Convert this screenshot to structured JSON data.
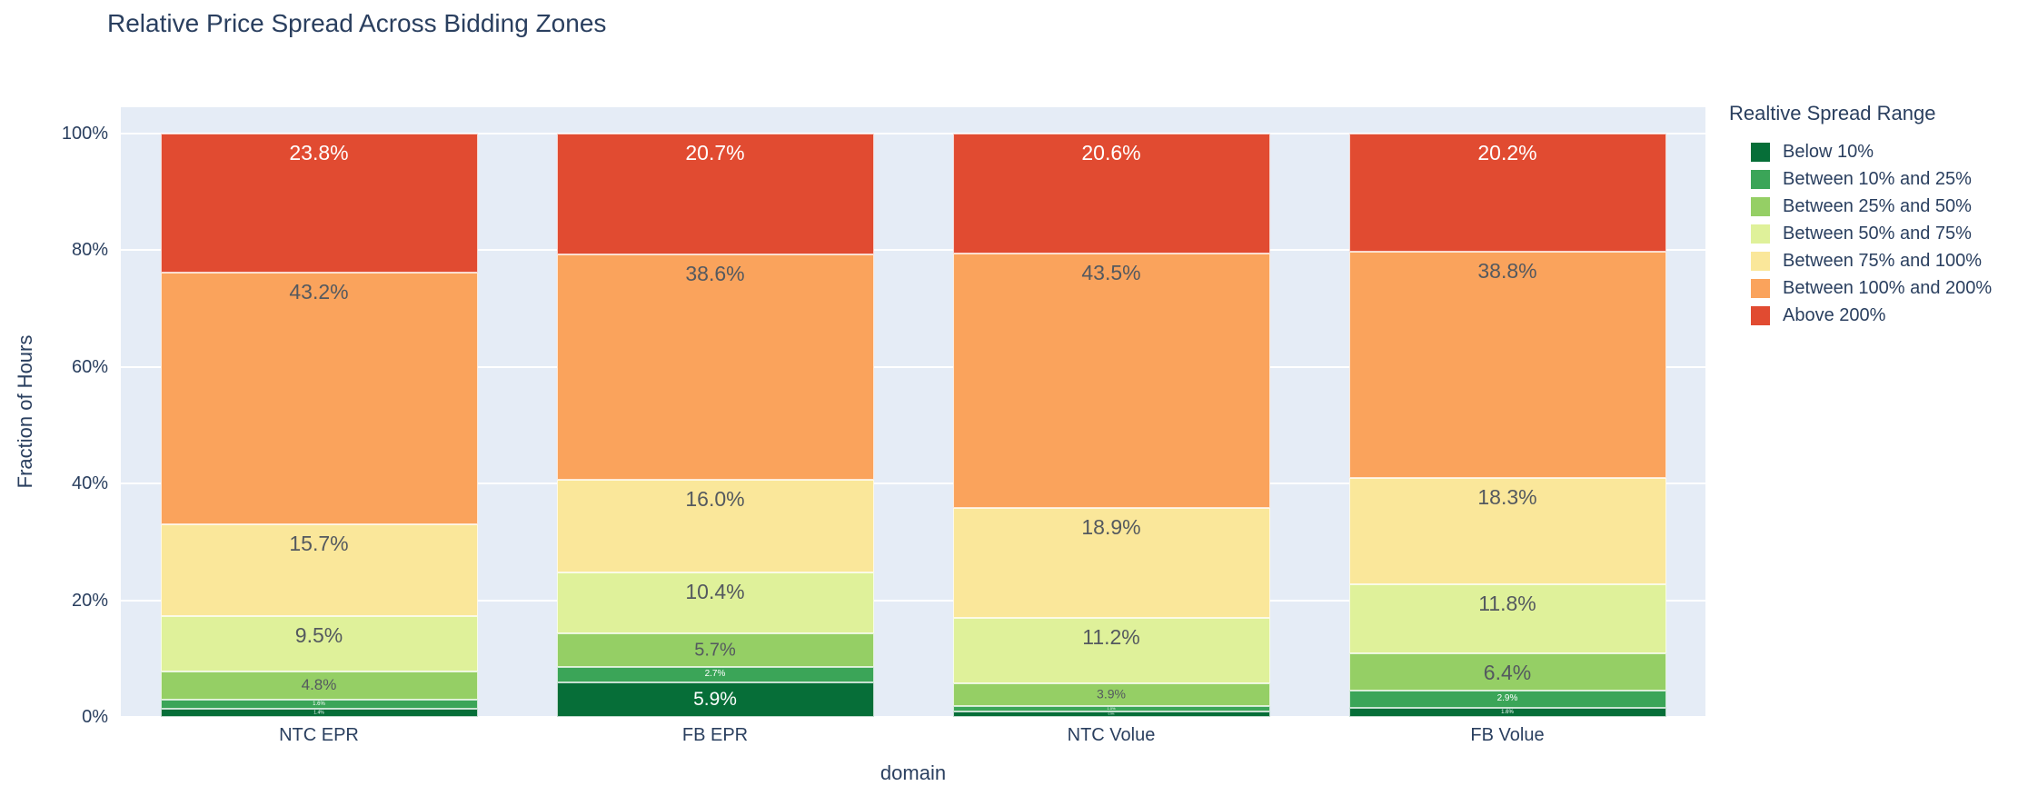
{
  "page": {
    "title": "Relative Price Spread Across Bidding Zones"
  },
  "axes": {
    "x_title": "domain",
    "y_title": "Fraction of Hours",
    "y_ticks": [
      {
        "value": 0,
        "label": "0%"
      },
      {
        "value": 20,
        "label": "20%"
      },
      {
        "value": 40,
        "label": "40%"
      },
      {
        "value": 60,
        "label": "60%"
      },
      {
        "value": 80,
        "label": "80%"
      },
      {
        "value": 100,
        "label": "100%"
      }
    ]
  },
  "legend": {
    "title": "Realtive Spread Range"
  },
  "colors": {
    "plot_background": "#e5ecf6",
    "gridline": "#ffffff",
    "text": "#2a3f5f",
    "inside_label_dark": "#54595f",
    "inside_label_light": "#ffffff"
  },
  "chart_data": {
    "type": "bar",
    "stacked": true,
    "title": "Relative Price Spread Across Bidding Zones",
    "xlabel": "domain",
    "ylabel": "Fraction of Hours",
    "ylim": [
      0,
      100
    ],
    "grid": true,
    "legend_position": "right",
    "categories": [
      "NTC EPR",
      "FB EPR",
      "NTC Volue",
      "FB Volue"
    ],
    "series": [
      {
        "name": "Below 10%",
        "color": "#066e38",
        "label_color": "#ffffff",
        "values": [
          1.4,
          5.9,
          0.9,
          1.6
        ]
      },
      {
        "name": "Between 10% and 25%",
        "color": "#3ba558",
        "label_color": "#ffffff",
        "values": [
          1.6,
          2.7,
          1.0,
          2.9
        ]
      },
      {
        "name": "Between 25% and 50%",
        "color": "#95cf65",
        "label_color": "#54595f",
        "values": [
          4.8,
          5.7,
          3.9,
          6.4
        ]
      },
      {
        "name": "Between 50% and 75%",
        "color": "#dff19a",
        "label_color": "#54595f",
        "values": [
          9.5,
          10.4,
          11.2,
          11.8
        ]
      },
      {
        "name": "Between 75% and 100%",
        "color": "#fae79a",
        "label_color": "#54595f",
        "values": [
          15.7,
          16.0,
          18.9,
          18.3
        ]
      },
      {
        "name": "Between 100% and 200%",
        "color": "#faa35c",
        "label_color": "#54595f",
        "values": [
          43.2,
          38.6,
          43.5,
          38.8
        ]
      },
      {
        "name": "Above 200%",
        "color": "#e14b31",
        "label_color": "#ffffff",
        "values": [
          23.8,
          20.7,
          20.6,
          20.2
        ]
      }
    ]
  }
}
